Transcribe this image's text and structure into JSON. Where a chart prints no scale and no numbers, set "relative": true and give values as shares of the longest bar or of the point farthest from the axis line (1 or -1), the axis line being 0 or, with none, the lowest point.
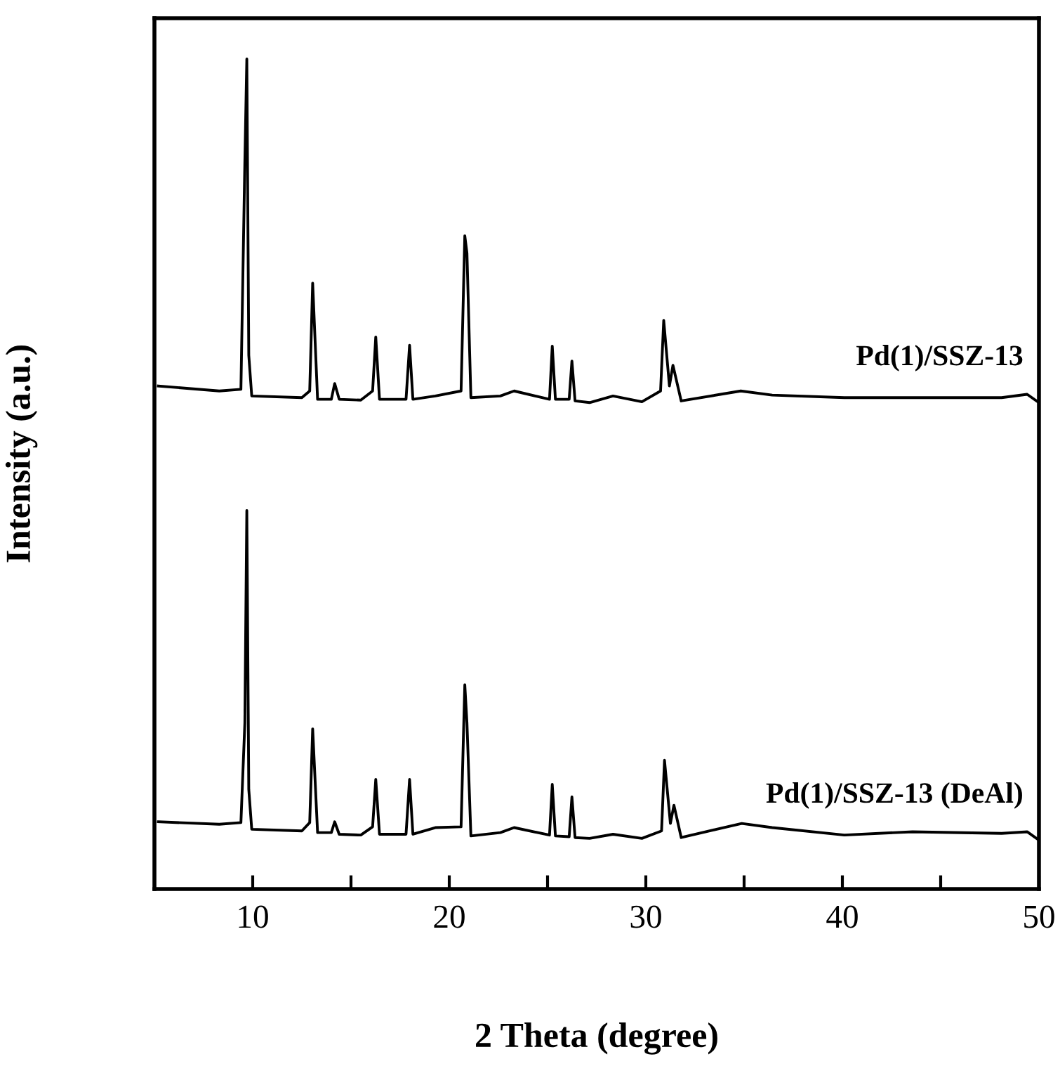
{
  "chart_data": {
    "type": "line",
    "relative": true,
    "xlabel": "2 Theta (degree)",
    "ylabel": "Intensity (a.u.)",
    "xlim": [
      5,
      50
    ],
    "xticks": [
      10,
      {
        "value": 15,
        "label": null
      },
      20,
      {
        "value": 25,
        "label": null
      },
      30,
      {
        "value": 35,
        "label": null
      },
      40,
      {
        "value": 45,
        "label": null
      },
      50
    ],
    "tick_labels": "x",
    "grid": false,
    "legend": false,
    "marker": "none",
    "line_style": "solid",
    "series": [
      {
        "name": "Pd(1)/SSZ-13",
        "color": "#000000",
        "x": [
          5.2,
          8.3,
          9.4,
          9.6,
          9.7,
          9.8,
          9.95,
          12.5,
          12.9,
          13.05,
          13.3,
          14.0,
          14.17,
          14.4,
          15.5,
          16.1,
          16.26,
          16.45,
          17.8,
          17.98,
          18.15,
          19.29,
          20.6,
          20.79,
          20.9,
          21.1,
          22.6,
          23.3,
          25.1,
          25.24,
          25.4,
          26.1,
          26.24,
          26.4,
          27.14,
          28.33,
          29.8,
          30.75,
          30.91,
          31.2,
          31.38,
          31.8,
          34.83,
          36.43,
          40.1,
          43.57,
          48.1,
          49.4,
          50
        ],
        "values": [
          0.606,
          0.6,
          0.602,
          0.876,
          1,
          0.643,
          0.594,
          0.592,
          0.6,
          0.73,
          0.59,
          0.59,
          0.609,
          0.59,
          0.589,
          0.6,
          0.665,
          0.59,
          0.59,
          0.655,
          0.59,
          0.594,
          0.6,
          0.787,
          0.766,
          0.592,
          0.594,
          0.6,
          0.59,
          0.654,
          0.59,
          0.59,
          0.636,
          0.588,
          0.586,
          0.594,
          0.587,
          0.6,
          0.685,
          0.606,
          0.631,
          0.588,
          0.6,
          0.595,
          0.592,
          0.592,
          0.592,
          0.596,
          0.586
        ]
      },
      {
        "name": "Pd(1)/SSZ-13 (DeAl)",
        "color": "#000000",
        "x": [
          5.2,
          8.3,
          9.4,
          9.6,
          9.7,
          9.8,
          9.95,
          12.5,
          12.9,
          13.05,
          13.3,
          14.0,
          14.17,
          14.4,
          15.5,
          16.1,
          16.26,
          16.45,
          17.8,
          17.98,
          18.15,
          19.29,
          20.6,
          20.79,
          20.9,
          21.1,
          22.6,
          23.3,
          25.1,
          25.24,
          25.4,
          26.1,
          26.24,
          26.4,
          27.14,
          28.33,
          29.8,
          30.8,
          30.95,
          31.25,
          31.43,
          31.8,
          34.88,
          36.43,
          40.1,
          43.57,
          48.1,
          49.4,
          50
        ],
        "values": [
          0.081,
          0.078,
          0.08,
          0.2,
          0.456,
          0.12,
          0.072,
          0.07,
          0.08,
          0.193,
          0.068,
          0.068,
          0.081,
          0.066,
          0.065,
          0.075,
          0.132,
          0.066,
          0.066,
          0.132,
          0.066,
          0.074,
          0.075,
          0.246,
          0.2,
          0.064,
          0.068,
          0.074,
          0.065,
          0.126,
          0.064,
          0.063,
          0.111,
          0.062,
          0.061,
          0.066,
          0.061,
          0.07,
          0.155,
          0.079,
          0.101,
          0.062,
          0.079,
          0.074,
          0.065,
          0.069,
          0.067,
          0.069,
          0.059
        ]
      }
    ]
  }
}
